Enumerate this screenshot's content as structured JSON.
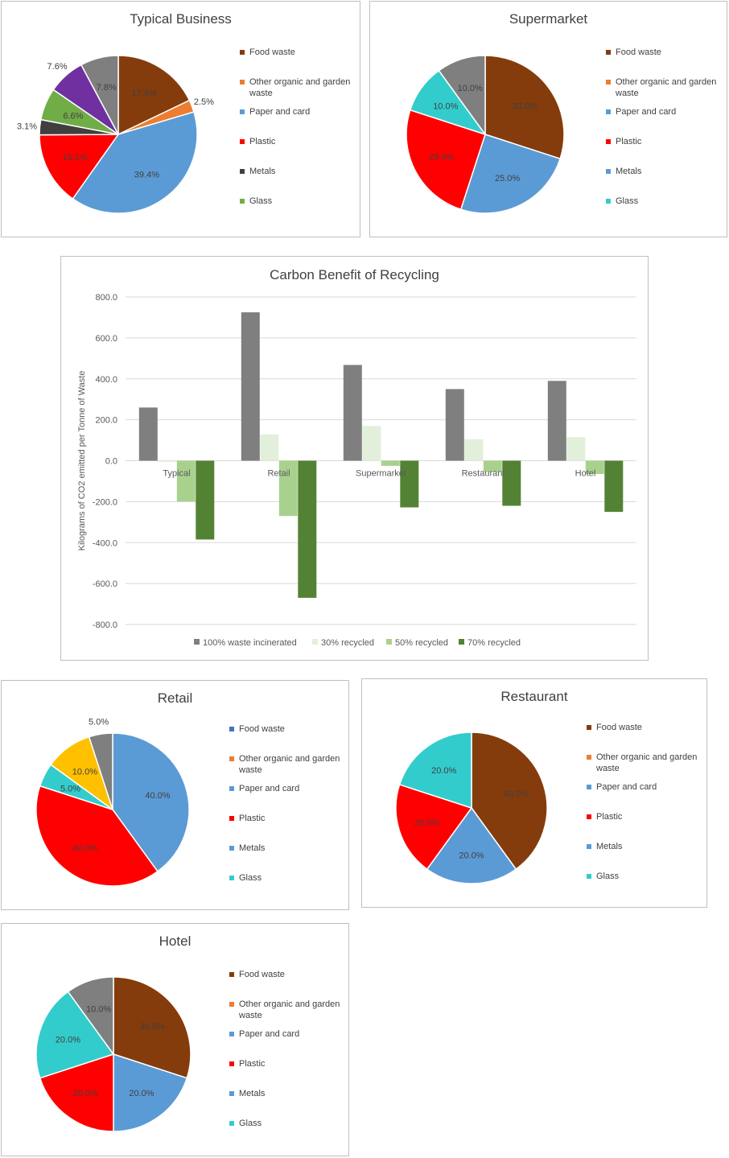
{
  "pies": [
    {
      "key": "typical",
      "title": "Typical Business",
      "legend": [
        "Food waste",
        "Other organic and garden waste",
        "Paper and card",
        "Plastic",
        "Metals",
        "Glass"
      ],
      "slices": [
        {
          "name": "Food waste",
          "value": 17.9,
          "label": "17.9%",
          "color": "#843C0C",
          "label_pos": "in"
        },
        {
          "name": "Other organic and garden waste",
          "value": 2.5,
          "label": "2.5%",
          "color": "#ED7D31",
          "label_pos": "out"
        },
        {
          "name": "Paper and card",
          "value": 39.4,
          "label": "39.4%",
          "color": "#5B9BD5",
          "label_pos": "in"
        },
        {
          "name": "Plastic",
          "value": 15.1,
          "label": "15.1%",
          "color": "#FF0000",
          "label_pos": "in"
        },
        {
          "name": "Metals",
          "value": 3.1,
          "label": "3.1%",
          "color": "#404040",
          "label_pos": "out"
        },
        {
          "name": "Glass",
          "value": 6.6,
          "label": "6.6%",
          "color": "#70AD47",
          "label_pos": "in"
        },
        {
          "name": "",
          "value": 7.6,
          "label": "7.6%",
          "color": "#7030A0",
          "label_pos": "out"
        },
        {
          "name": "",
          "value": 7.8,
          "label": "7.8%",
          "color": "#7F7F7F",
          "label_pos": "in"
        }
      ]
    },
    {
      "key": "supermarket",
      "title": "Supermarket",
      "legend": [
        "Food waste",
        "Other organic and garden waste",
        "Paper and card",
        "Plastic",
        "Metals",
        "Glass"
      ],
      "slices": [
        {
          "name": "Food waste",
          "value": 30.0,
          "label": "30.0%",
          "color": "#843C0C",
          "label_pos": "in"
        },
        {
          "name": "Paper and card",
          "value": 25.0,
          "label": "25.0%",
          "color": "#5B9BD5",
          "label_pos": "in"
        },
        {
          "name": "Plastic",
          "value": 25.0,
          "label": "25.0%",
          "color": "#FF0000",
          "label_pos": "in"
        },
        {
          "name": "Glass",
          "value": 10.0,
          "label": "10.0%",
          "color": "#33CCCC",
          "label_pos": "in"
        },
        {
          "name": "",
          "value": 10.0,
          "label": "10.0%",
          "color": "#7F7F7F",
          "label_pos": "in"
        }
      ]
    },
    {
      "key": "retail",
      "title": "Retail",
      "legend": [
        "Food waste",
        "Other organic and garden waste",
        "Paper and card",
        "Plastic",
        "Metals",
        "Glass"
      ],
      "slices": [
        {
          "name": "Paper and card",
          "value": 40.0,
          "label": "40.0%",
          "color": "#5B9BD5",
          "label_pos": "in"
        },
        {
          "name": "Plastic",
          "value": 40.0,
          "label": "40.0%",
          "color": "#FF0000",
          "label_pos": "in"
        },
        {
          "name": "Glass",
          "value": 5.0,
          "label": "5.0%",
          "color": "#33CCCC",
          "label_pos": "in"
        },
        {
          "name": "",
          "value": 10.0,
          "label": "10.0%",
          "color": "#FFC000",
          "label_pos": "in"
        },
        {
          "name": "",
          "value": 5.0,
          "label": "5.0%",
          "color": "#7F7F7F",
          "label_pos": "out"
        }
      ]
    },
    {
      "key": "restaurant",
      "title": "Restaurant",
      "legend": [
        "Food waste",
        "Other organic and garden waste",
        "Paper and card",
        "Plastic",
        "Metals",
        "Glass"
      ],
      "slices": [
        {
          "name": "Food waste",
          "value": 40.0,
          "label": "40.0%",
          "color": "#843C0C",
          "label_pos": "in"
        },
        {
          "name": "Paper and card",
          "value": 20.0,
          "label": "20.0%",
          "color": "#5B9BD5",
          "label_pos": "in"
        },
        {
          "name": "Plastic",
          "value": 20.0,
          "label": "20.0%",
          "color": "#FF0000",
          "label_pos": "in"
        },
        {
          "name": "Glass",
          "value": 20.0,
          "label": "20.0%",
          "color": "#33CCCC",
          "label_pos": "in"
        }
      ]
    },
    {
      "key": "hotel",
      "title": "Hotel",
      "legend": [
        "Food waste",
        "Other organic and garden waste",
        "Paper and card",
        "Plastic",
        "Metals",
        "Glass"
      ],
      "slices": [
        {
          "name": "Food waste",
          "value": 30.0,
          "label": "30.0%",
          "color": "#843C0C",
          "label_pos": "in"
        },
        {
          "name": "Paper and card",
          "value": 20.0,
          "label": "20.0%",
          "color": "#5B9BD5",
          "label_pos": "in"
        },
        {
          "name": "Plastic",
          "value": 20.0,
          "label": "20.0%",
          "color": "#FF0000",
          "label_pos": "in"
        },
        {
          "name": "Glass",
          "value": 20.0,
          "label": "20.0%",
          "color": "#33CCCC",
          "label_pos": "in"
        },
        {
          "name": "",
          "value": 10.0,
          "label": "10.0%",
          "color": "#7F7F7F",
          "label_pos": "in"
        }
      ]
    }
  ],
  "legend_colors": {
    "Food waste": "#843C0C",
    "Other organic and garden waste": "#ED7D31",
    "Paper and card": "#5B9BD5",
    "Plastic": "#FF0000",
    "Metals": "#404040",
    "Glass": "#70AD47"
  },
  "legend_colors_overrides": {
    "supermarket": {
      "Metals": "#5B9BD5",
      "Glass": "#33CCCC"
    },
    "retail": {
      "Food waste": "#4472C4",
      "Metals": "#5B9BD5",
      "Glass": "#33CCCC"
    },
    "restaurant": {
      "Metals": "#5B9BD5",
      "Glass": "#33CCCC"
    },
    "hotel": {
      "Metals": "#5B9BD5",
      "Glass": "#33CCCC"
    }
  },
  "chart_data": [
    {
      "type": "pie",
      "title": "Typical Business",
      "labels": [
        "Food waste",
        "Other organic and garden waste",
        "Paper and card",
        "Plastic",
        "Metals",
        "Glass",
        "",
        ""
      ],
      "values": [
        17.9,
        2.5,
        39.4,
        15.1,
        3.1,
        6.6,
        7.6,
        7.8
      ]
    },
    {
      "type": "pie",
      "title": "Supermarket",
      "labels": [
        "Food waste",
        "Paper and card",
        "Plastic",
        "Glass",
        ""
      ],
      "values": [
        30.0,
        25.0,
        25.0,
        10.0,
        10.0
      ]
    },
    {
      "type": "bar",
      "title": "Carbon Benefit of Recycling",
      "ylabel": "Kilograms of CO2 emitted per Tonne of Waste",
      "xlabel": "",
      "categories": [
        "Typical",
        "Retail",
        "Supermarket",
        "Restaurant",
        "Hotel"
      ],
      "ylim": [
        -800,
        800
      ],
      "yticks": [
        "800.0",
        "600.0",
        "400.0",
        "200.0",
        "0.0",
        "-200.0",
        "-400.0",
        "-600.0",
        "-800.0"
      ],
      "grid": true,
      "legend_position": "bottom",
      "series": [
        {
          "name": "100% waste incinerated",
          "color": "#7F7F7F",
          "values": [
            260,
            725,
            468,
            350,
            390
          ]
        },
        {
          "name": "30% recycled",
          "color": "#E2EFDA",
          "values": [
            -5,
            128,
            170,
            105,
            115
          ]
        },
        {
          "name": "50% recycled",
          "color": "#A9D18E",
          "values": [
            -200,
            -270,
            -25,
            -55,
            -65
          ]
        },
        {
          "name": "70% recycled",
          "color": "#548235",
          "values": [
            -385,
            -670,
            -228,
            -220,
            -250
          ]
        }
      ]
    },
    {
      "type": "pie",
      "title": "Retail",
      "labels": [
        "Paper and card",
        "Plastic",
        "Glass",
        "",
        ""
      ],
      "values": [
        40.0,
        40.0,
        5.0,
        10.0,
        5.0
      ]
    },
    {
      "type": "pie",
      "title": "Restaurant",
      "labels": [
        "Food waste",
        "Paper and card",
        "Plastic",
        "Glass"
      ],
      "values": [
        40.0,
        20.0,
        20.0,
        20.0
      ]
    },
    {
      "type": "pie",
      "title": "Hotel",
      "labels": [
        "Food waste",
        "Paper and card",
        "Plastic",
        "Glass",
        ""
      ],
      "values": [
        30.0,
        20.0,
        20.0,
        20.0,
        10.0
      ]
    }
  ]
}
